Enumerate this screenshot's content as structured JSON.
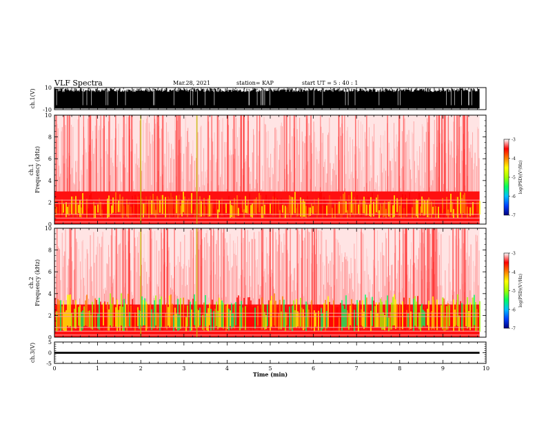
{
  "header": {
    "title": "VLF Spectra",
    "date": "Mar.28, 2021",
    "station": "station= KAP",
    "start": "start  UT =   5  : 40 : 1"
  },
  "chart_data": [
    {
      "type": "line",
      "name": "ch1-waveform",
      "ylabel": "ch.1(V)",
      "ylim": [
        -10,
        10
      ],
      "yticks": [
        "10",
        "-10"
      ],
      "xlim": [
        0,
        10
      ]
    },
    {
      "type": "heatmap",
      "name": "ch1-spectrogram",
      "ylabel_line1": "ch.1",
      "ylabel_line2": "Frequency (kHz)",
      "ylim": [
        0,
        10
      ],
      "yticks": [
        "0",
        "2",
        "4",
        "6",
        "8",
        "10"
      ],
      "xlim": [
        0,
        10
      ],
      "data_end_min": 9.85,
      "colorbar": {
        "label": "log(PSD)(V²/Hz)",
        "range": [
          -7,
          -3
        ],
        "ticks": [
          "-3",
          "-4",
          "-5",
          "-6",
          "-7"
        ]
      }
    },
    {
      "type": "heatmap",
      "name": "ch2-spectrogram",
      "ylabel_line1": "ch.2",
      "ylabel_line2": "Frequency (kHz)",
      "ylim": [
        0,
        10
      ],
      "yticks": [
        "0",
        "2",
        "4",
        "6",
        "8",
        "10"
      ],
      "xlim": [
        0,
        10
      ],
      "data_end_min": 9.85,
      "colorbar": {
        "label": "log(PSD)(V²/Hz)",
        "range": [
          -7,
          -3
        ],
        "ticks": [
          "-3",
          "-4",
          "-5",
          "-6",
          "-7"
        ]
      }
    },
    {
      "type": "line",
      "name": "ch3-waveform",
      "ylabel": "ch.3(V)",
      "ylim": [
        -5,
        5
      ],
      "yticks": [
        "5",
        "0",
        "-5"
      ],
      "xlim": [
        0,
        10
      ],
      "xticks": [
        "0",
        "1",
        "2",
        "3",
        "4",
        "5",
        "6",
        "7",
        "8",
        "9",
        "10"
      ],
      "xlabel": "Time (min)"
    }
  ],
  "colors": {
    "colormap": [
      "#000080",
      "#0040ff",
      "#00c0ff",
      "#00ff60",
      "#a0ff00",
      "#ffff00",
      "#ff8000",
      "#ff0000",
      "#ffffff"
    ],
    "trace": "#000000"
  }
}
